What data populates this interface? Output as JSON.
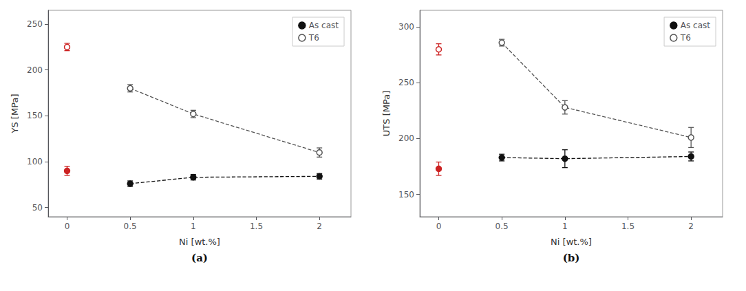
{
  "chart_data": [
    {
      "type": "scatter",
      "xlabel": "Ni [wt.%]",
      "ylabel": "YS [MPa]",
      "annotations": [
        "(a)"
      ],
      "xlim": [
        -0.15,
        2.25
      ],
      "xticks": [
        0,
        0.5,
        1,
        1.5,
        2
      ],
      "ylim": [
        40,
        265
      ],
      "yticks": [
        50,
        100,
        150,
        200,
        250
      ],
      "grid": false,
      "legend": "upper right",
      "series": [
        {
          "name": "As cast",
          "type": "line",
          "line_style": "dashed",
          "marker": "filled",
          "color": "#111111",
          "x": [
            0.5,
            1,
            2
          ],
          "values": [
            76,
            83,
            84
          ],
          "errors": [
            3,
            3,
            3
          ]
        },
        {
          "name": "T6",
          "type": "line",
          "line_style": "dashed",
          "marker": "open",
          "color": "#555555",
          "x": [
            0.5,
            1,
            2
          ],
          "values": [
            180,
            152,
            110
          ],
          "errors": [
            4,
            4,
            5
          ]
        },
        {
          "type": "scatter",
          "marker": "filled",
          "color": "#cc2222",
          "x": [
            0
          ],
          "values": [
            90
          ],
          "errors": [
            5
          ]
        },
        {
          "type": "scatter",
          "marker": "open",
          "color": "#cc2222",
          "x": [
            0
          ],
          "values": [
            225
          ],
          "errors": [
            4
          ]
        }
      ]
    },
    {
      "type": "scatter",
      "xlabel": "Ni [wt.%]",
      "ylabel": "UTS [MPa]",
      "annotations": [
        "(b)"
      ],
      "xlim": [
        -0.15,
        2.25
      ],
      "xticks": [
        0,
        0.5,
        1,
        1.5,
        2
      ],
      "ylim": [
        130,
        315
      ],
      "yticks": [
        150,
        200,
        250,
        300
      ],
      "grid": false,
      "legend": "upper right",
      "series": [
        {
          "name": "As cast",
          "type": "line",
          "line_style": "dashed",
          "marker": "filled",
          "color": "#111111",
          "x": [
            0.5,
            1,
            2
          ],
          "values": [
            183,
            182,
            184
          ],
          "errors": [
            3,
            8,
            4
          ]
        },
        {
          "name": "T6",
          "type": "line",
          "line_style": "dashed",
          "marker": "open",
          "color": "#555555",
          "x": [
            0.5,
            1,
            2
          ],
          "values": [
            286,
            228,
            201
          ],
          "errors": [
            3,
            6,
            9
          ]
        },
        {
          "type": "scatter",
          "marker": "filled",
          "color": "#cc2222",
          "x": [
            0
          ],
          "values": [
            173
          ],
          "errors": [
            6
          ]
        },
        {
          "type": "scatter",
          "marker": "open",
          "color": "#cc2222",
          "x": [
            0
          ],
          "values": [
            280
          ],
          "errors": [
            5
          ]
        }
      ]
    }
  ]
}
